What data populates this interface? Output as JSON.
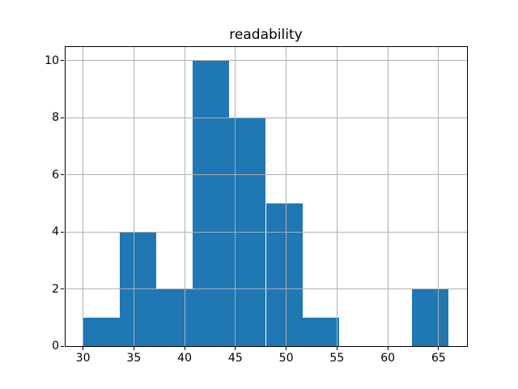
{
  "chart_data": {
    "type": "histogram",
    "title": "readability",
    "xlabel": "",
    "ylabel": "",
    "bin_edges": [
      30,
      33.6,
      37.2,
      40.8,
      44.4,
      48,
      51.6,
      55.2,
      58.8,
      62.4,
      66
    ],
    "counts": [
      1,
      4,
      2,
      10,
      8,
      5,
      1,
      0,
      0,
      2
    ],
    "x_ticks": [
      30,
      35,
      40,
      45,
      50,
      55,
      60,
      65
    ],
    "y_ticks": [
      0,
      2,
      4,
      6,
      8,
      10
    ],
    "xlim": [
      28.2,
      67.8
    ],
    "ylim": [
      0,
      10.5
    ],
    "grid": true,
    "legend": "none",
    "bar_color": "#1f77b4",
    "grid_color": "#b0b0b0",
    "spine_color": "#000000",
    "background_color": "#ffffff"
  }
}
